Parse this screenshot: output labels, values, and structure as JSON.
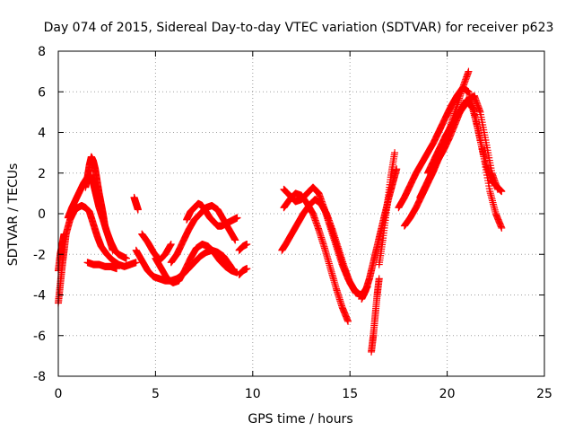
{
  "chart_data": {
    "type": "scatter",
    "title": "Day 074 of 2015, Sidereal Day-to-day VTEC variation (SDTVAR) for receiver p623",
    "xlabel": "GPS time / hours",
    "ylabel": "SDTVAR / TECUs",
    "xlim": [
      0,
      25
    ],
    "ylim": [
      -8,
      8
    ],
    "xticks": [
      0,
      5,
      10,
      15,
      20,
      25
    ],
    "yticks": [
      -8,
      -6,
      -4,
      -2,
      0,
      2,
      4,
      6,
      8
    ],
    "grid": true,
    "marker": "+",
    "color": "#ff0000",
    "series": [
      {
        "name": "s1",
        "x": [
          0.0,
          0.1,
          0.2,
          0.3,
          0.4,
          0.6,
          0.8,
          1.0,
          1.2,
          1.4,
          1.6,
          1.8,
          2.0,
          2.2,
          2.5,
          2.8,
          3.1,
          3.4,
          3.7,
          4.0
        ],
        "y": [
          -4.4,
          -3.5,
          -2.6,
          -1.8,
          -1.0,
          -0.3,
          0.1,
          0.3,
          0.4,
          0.3,
          0.1,
          -0.5,
          -1.1,
          -1.6,
          -2.0,
          -2.3,
          -2.5,
          -2.6,
          -2.5,
          -2.4
        ]
      },
      {
        "name": "s2",
        "x": [
          0.5,
          0.7,
          0.9,
          1.1,
          1.3,
          1.5,
          1.6,
          1.7,
          1.8,
          1.9,
          2.0,
          2.1,
          2.3,
          2.5,
          2.7,
          2.9,
          3.1,
          3.3,
          3.5
        ],
        "y": [
          -0.2,
          0.3,
          0.7,
          1.1,
          1.5,
          1.8,
          1.9,
          1.8,
          1.5,
          1.1,
          0.7,
          0.3,
          -0.3,
          -0.9,
          -1.4,
          -1.8,
          -2.0,
          -2.1,
          -2.2
        ]
      },
      {
        "name": "s3",
        "x": [
          1.4,
          1.5,
          1.6,
          1.7,
          1.8,
          1.9,
          2.0,
          2.1,
          2.2,
          2.3,
          2.4,
          2.6,
          2.8
        ],
        "y": [
          1.3,
          1.8,
          2.4,
          2.8,
          2.6,
          2.2,
          1.6,
          1.0,
          0.5,
          0.0,
          -0.6,
          -1.2,
          -1.8
        ]
      },
      {
        "name": "s4",
        "x": [
          0.0,
          0.1,
          0.2,
          0.3
        ],
        "y": [
          -2.8,
          -2.0,
          -1.5,
          -1.0
        ]
      },
      {
        "name": "s5",
        "x": [
          1.5,
          1.8,
          2.1,
          2.4,
          2.7,
          3.0
        ],
        "y": [
          -2.4,
          -2.5,
          -2.5,
          -2.6,
          -2.6,
          -2.7
        ]
      },
      {
        "name": "s6",
        "x": [
          3.9,
          4.0,
          4.1
        ],
        "y": [
          0.8,
          0.5,
          0.2
        ]
      },
      {
        "name": "s7",
        "x": [
          4.0,
          4.3,
          4.6,
          4.9,
          5.2,
          5.5,
          5.8,
          6.1,
          6.4,
          6.7,
          7.0,
          7.3,
          7.6,
          7.9,
          8.2,
          8.5,
          8.8,
          9.0
        ],
        "y": [
          -1.8,
          -2.3,
          -2.8,
          -3.1,
          -3.2,
          -3.3,
          -3.3,
          -3.2,
          -3.0,
          -2.7,
          -2.4,
          -2.1,
          -1.9,
          -1.8,
          -1.9,
          -2.1,
          -2.5,
          -2.8
        ]
      },
      {
        "name": "s8",
        "x": [
          5.0,
          5.3,
          5.6,
          5.9,
          6.2,
          6.5,
          6.8,
          7.1,
          7.4,
          7.7,
          8.0,
          8.3,
          8.6,
          8.9,
          9.2
        ],
        "y": [
          -2.2,
          -2.7,
          -3.2,
          -3.4,
          -3.3,
          -2.8,
          -2.2,
          -1.7,
          -1.5,
          -1.6,
          -1.9,
          -2.3,
          -2.6,
          -2.8,
          -2.9
        ]
      },
      {
        "name": "s9",
        "x": [
          5.8,
          6.1,
          6.4,
          6.7,
          7.0,
          7.3,
          7.6,
          7.9,
          8.2,
          8.5,
          8.8,
          9.1
        ],
        "y": [
          -2.4,
          -2.0,
          -1.4,
          -0.8,
          -0.3,
          0.0,
          0.3,
          0.4,
          0.2,
          -0.3,
          -0.8,
          -1.3
        ]
      },
      {
        "name": "s10",
        "x": [
          6.6,
          6.8,
          7.0,
          7.2,
          7.4,
          7.6,
          7.8,
          8.0,
          8.2,
          8.4,
          8.6,
          8.8,
          9.0,
          9.2
        ],
        "y": [
          -0.3,
          0.1,
          0.3,
          0.5,
          0.4,
          0.1,
          -0.2,
          -0.4,
          -0.6,
          -0.6,
          -0.5,
          -0.4,
          -0.3,
          -0.2
        ]
      },
      {
        "name": "s11",
        "x": [
          4.3,
          4.6,
          4.9,
          5.2,
          5.5,
          5.8
        ],
        "y": [
          -1.0,
          -1.4,
          -1.9,
          -2.3,
          -2.0,
          -1.5
        ]
      },
      {
        "name": "s12",
        "x": [
          9.3,
          9.5,
          9.7
        ],
        "y": [
          -3.0,
          -2.8,
          -2.7
        ]
      },
      {
        "name": "s13",
        "x": [
          9.3,
          9.5,
          9.7
        ],
        "y": [
          -1.8,
          -1.6,
          -1.5
        ]
      },
      {
        "name": "s14",
        "x": [
          11.5,
          11.7,
          12.0,
          12.3,
          12.6,
          12.9,
          13.2,
          13.5,
          13.8,
          14.1,
          14.4,
          14.7,
          15.0,
          15.3,
          15.6,
          15.9
        ],
        "y": [
          -1.8,
          -1.5,
          -1.0,
          -0.5,
          0.0,
          0.4,
          0.7,
          0.5,
          0.0,
          -0.8,
          -1.7,
          -2.6,
          -3.4,
          -3.9,
          -4.0,
          -3.6
        ]
      },
      {
        "name": "s15",
        "x": [
          11.6,
          11.9,
          12.2,
          12.5,
          12.8,
          13.1,
          13.4,
          13.7,
          14.0,
          14.3,
          14.6,
          14.9
        ],
        "y": [
          0.3,
          0.7,
          1.0,
          0.9,
          0.5,
          0.0,
          -0.8,
          -1.7,
          -2.7,
          -3.7,
          -4.6,
          -5.3
        ]
      },
      {
        "name": "s16",
        "x": [
          11.6,
          11.9,
          12.2,
          12.5,
          12.8,
          13.1,
          13.4,
          13.7,
          14.0,
          14.3,
          14.6,
          14.9,
          15.2,
          15.5
        ],
        "y": [
          1.2,
          0.9,
          0.6,
          0.7,
          1.0,
          1.3,
          1.0,
          0.2,
          -0.7,
          -1.6,
          -2.5,
          -3.2,
          -3.7,
          -4.0
        ]
      },
      {
        "name": "s17",
        "x": [
          15.6,
          15.8,
          16.0,
          16.2,
          16.4,
          16.6,
          16.8,
          17.0,
          17.2,
          17.4
        ],
        "y": [
          -4.2,
          -3.8,
          -3.2,
          -2.4,
          -1.6,
          -0.8,
          0.0,
          0.8,
          1.5,
          2.2
        ]
      },
      {
        "name": "s18",
        "x": [
          16.1,
          16.2,
          16.3,
          16.4,
          16.5
        ],
        "y": [
          -6.8,
          -6.0,
          -5.0,
          -4.0,
          -3.2
        ]
      },
      {
        "name": "s19",
        "x": [
          16.5,
          16.7,
          16.9,
          17.1,
          17.3
        ],
        "y": [
          -2.5,
          -1.2,
          0.3,
          1.8,
          3.0
        ]
      },
      {
        "name": "s20",
        "x": [
          17.5,
          17.8,
          18.1,
          18.4,
          18.7,
          19.0,
          19.3,
          19.6,
          19.9,
          20.2,
          20.5,
          20.8,
          21.1,
          21.4,
          21.7,
          22.0,
          22.3,
          22.6,
          22.8
        ],
        "y": [
          0.3,
          0.8,
          1.4,
          2.0,
          2.5,
          3.0,
          3.5,
          4.1,
          4.7,
          5.3,
          5.8,
          6.2,
          6.0,
          5.0,
          3.6,
          2.4,
          1.6,
          1.3,
          1.1
        ]
      },
      {
        "name": "s21",
        "x": [
          17.8,
          18.1,
          18.4,
          18.7,
          19.0,
          19.3,
          19.6,
          19.9,
          20.2,
          20.5,
          20.8,
          21.1
        ],
        "y": [
          -0.6,
          -0.2,
          0.3,
          0.9,
          1.5,
          2.1,
          2.8,
          3.6,
          4.4,
          5.3,
          6.2,
          7.0
        ]
      },
      {
        "name": "s22",
        "x": [
          18.6,
          18.9,
          19.2,
          19.5,
          19.8,
          20.1,
          20.4,
          20.7,
          21.0,
          21.3,
          21.6,
          21.9,
          22.2,
          22.5,
          22.8
        ],
        "y": [
          0.8,
          1.4,
          2.0,
          2.6,
          3.1,
          3.7,
          4.4,
          5.1,
          5.6,
          5.2,
          4.1,
          2.7,
          1.1,
          0.0,
          -0.7
        ]
      },
      {
        "name": "s23",
        "x": [
          19.0,
          19.3,
          19.6,
          19.9,
          20.2,
          20.5,
          20.8,
          21.1,
          21.4,
          21.7,
          22.0,
          22.3,
          22.6
        ],
        "y": [
          2.0,
          2.6,
          3.2,
          3.8,
          4.3,
          4.8,
          5.2,
          5.6,
          5.8,
          5.0,
          3.5,
          2.0,
          1.2
        ]
      }
    ]
  }
}
